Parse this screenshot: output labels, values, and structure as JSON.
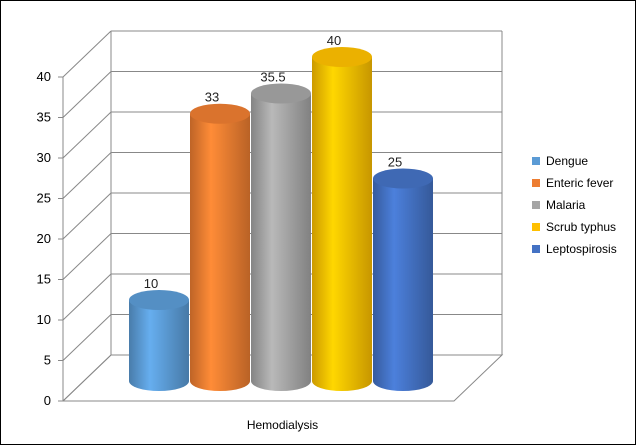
{
  "chart_data": {
    "type": "bar",
    "style": "3d-cylinder",
    "categories": [
      "Hemodialysis"
    ],
    "series": [
      {
        "name": "Dengue",
        "values": [
          10
        ],
        "color": "#5B9BD5"
      },
      {
        "name": "Enteric fever",
        "values": [
          33
        ],
        "color": "#ED7D31"
      },
      {
        "name": "Malaria",
        "values": [
          35.5
        ],
        "color": "#A5A5A5"
      },
      {
        "name": "Scrub typhus",
        "values": [
          40
        ],
        "color": "#FFC000"
      },
      {
        "name": "Leptospirosis",
        "values": [
          25
        ],
        "color": "#4472C4"
      }
    ],
    "data_labels": [
      "10",
      "33",
      "35.5",
      "40",
      "25"
    ],
    "yticks": [
      "0",
      "5",
      "10",
      "15",
      "20",
      "25",
      "30",
      "35",
      "40"
    ],
    "ylim": [
      0,
      40
    ],
    "xlabel": "",
    "ylabel": "",
    "grid": true,
    "legend_position": "right"
  }
}
